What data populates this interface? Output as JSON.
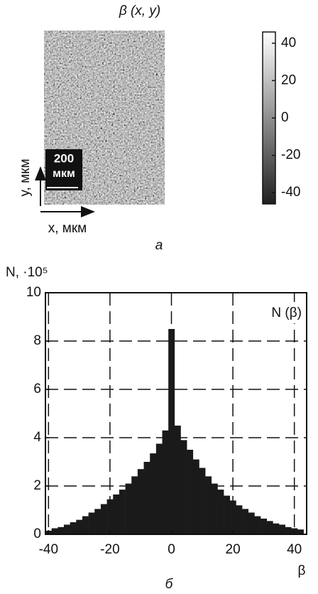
{
  "chart_data": [
    {
      "type": "image",
      "title": "β (x, y)",
      "xlabel": "x, мкм",
      "ylabel": "y, мкм",
      "scale_bar_text": [
        "200",
        "мкм"
      ],
      "caption": "а",
      "clim": [
        -46,
        46
      ],
      "cticks": [
        40,
        20,
        0,
        -20,
        -40
      ]
    },
    {
      "type": "histogram",
      "ylabel": "N, ·10⁵",
      "xlabel": "β",
      "legend": "N (β)",
      "caption": "б",
      "color": "#1a1a1a",
      "grid": true,
      "xlim": [
        -41,
        44
      ],
      "xticks": [
        -40,
        -20,
        0,
        20,
        40
      ],
      "ylim": [
        0,
        10
      ],
      "yticks": [
        0,
        2,
        4,
        6,
        8,
        10
      ],
      "bins": [
        -41,
        -39,
        -37,
        -35,
        -33,
        -31,
        -29,
        -27,
        -25,
        -23,
        -21,
        -19,
        -17,
        -15,
        -13,
        -11,
        -9,
        -7,
        -5,
        -3,
        -1,
        1,
        3,
        5,
        7,
        9,
        11,
        13,
        15,
        17,
        19,
        21,
        23,
        25,
        27,
        29,
        31,
        33,
        35,
        37,
        39,
        41,
        43
      ],
      "values": [
        0.15,
        0.25,
        0.3,
        0.4,
        0.5,
        0.6,
        0.75,
        0.9,
        1.05,
        1.25,
        1.45,
        1.65,
        1.85,
        2.1,
        2.4,
        2.7,
        3.0,
        3.35,
        3.75,
        4.3,
        8.5,
        4.5,
        3.9,
        3.5,
        3.1,
        2.75,
        2.4,
        2.1,
        1.85,
        1.6,
        1.4,
        1.2,
        1.05,
        0.9,
        0.75,
        0.65,
        0.55,
        0.45,
        0.4,
        0.3,
        0.25,
        0.2
      ]
    }
  ]
}
